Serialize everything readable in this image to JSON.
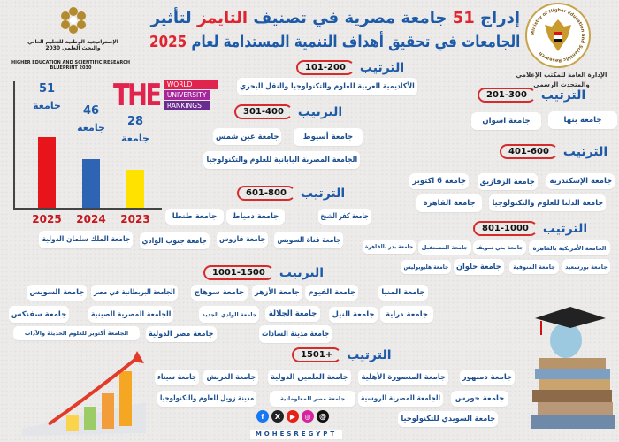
{
  "header": {
    "title_line1_pre": "إدراج",
    "title_count": "51",
    "title_line1_mid": "جامعة مصرية في تصنيف",
    "title_highlight": "التايمز",
    "title_line1_post": "لتأثير",
    "title_line2_pre": "الجامعات في تحقيق أهداف التنمية المستدامة لعام",
    "title_year": "2025",
    "ministry_office_line1": "الإدارة العامة للمكتب الإعلامي",
    "ministry_office_line2": "والمتحدث الرسمي",
    "ministry_seal_text": "Ministry of Higher Education and Scientific Research",
    "strategy_ar_line1": "الإستراتيجية الوطنية للتعليم العالي",
    "strategy_ar_line2": "والبحث العلمي 2030",
    "strategy_en_line1": "HIGHER EDUCATION AND SCIENTIFIC RESEARCH",
    "strategy_en_line2": "BLUEPRINT 2030",
    "the_logo": {
      "big": "THE",
      "l1": "WORLD",
      "l2": "UNIVERSITY",
      "l3": "RANKINGS"
    }
  },
  "rank_label": "الترتيب",
  "unit_label": "جامعة",
  "chart_data": {
    "type": "bar",
    "categories": [
      "2025",
      "2024",
      "2023"
    ],
    "values": [
      51,
      46,
      28
    ],
    "colors": [
      "#e8141c",
      "#2e64b4",
      "#ffe200"
    ],
    "data_labels": [
      "51",
      "46",
      "28"
    ]
  },
  "groups": [
    {
      "rank": "101-200",
      "universities": [
        "الأكاديمية العربية للعلوم والتكنولوجيا والنقل البحري"
      ]
    },
    {
      "rank": "201-300",
      "universities": [
        "جامعة بنها",
        "جامعة اسوان"
      ]
    },
    {
      "rank": "301-400",
      "universities": [
        "جامعة أسيوط",
        "جامعة عين شمس",
        "الجامعة المصرية اليابانية للعلوم والتكنولوجيا"
      ]
    },
    {
      "rank": "401-600",
      "universities": [
        "جامعة الإسكندرية",
        "جامعة الزقازيق",
        "جامعة 6 اكتوبر",
        "جامعة الدلتا للعلوم والتكنولوجيا",
        "جامعة القاهرة"
      ]
    },
    {
      "rank": "601-800",
      "universities": [
        "جامعة كفر الشيخ",
        "جامعة دمياط",
        "جامعة طنطا",
        "جامعة قناة السويس",
        "جامعة فاروس",
        "جامعة جنوب الوادي",
        "جامعة الملك سلمان الدولية"
      ]
    },
    {
      "rank": "801-1000",
      "universities": [
        "الجامعة الأمريكية بالقاهرة",
        "جامعة بني سويف",
        "جامعة المستقبل",
        "جامعة بدر بالقاهرة",
        "جامعة بورسعيد",
        "جامعة المنوفية",
        "جامعة حلوان",
        "جامعة هليوبوليس"
      ]
    },
    {
      "rank": "1001-1500",
      "universities": [
        "جامعة المنيا",
        "جامعة الفيوم",
        "جامعة الأزهر",
        "جامعة سوهاج",
        "الجامعة البريطانية في مصر",
        "جامعة السويس",
        "جامعة دراية",
        "جامعة النيل",
        "جامعة الجلالة",
        "جامعة الوادي الجديد",
        "الجامعة المصرية الصينية",
        "جامعة سفنكس",
        "جامعة مدينة السادات",
        "جامعة مصر الدولية",
        "الجامعة أكتوبر للعلوم الحديثة والآداب"
      ]
    },
    {
      "rank": "+1501",
      "universities": [
        "جامعة دمنهور",
        "جامعة المنصورة الأهلية",
        "جامعة العلمين الدولية",
        "جامعة العريش",
        "جامعة سيناء",
        "جامعة حورس",
        "الجامعة المصرية الروسية",
        "جامعة مصر للمعلوماتية",
        "مدينة زويل للعلوم والتكنولوجيا",
        "جامعة السويدي للتكنولوجيا"
      ]
    }
  ],
  "footer": {
    "social": [
      "threads-icon",
      "instagram-icon",
      "youtube-icon",
      "x-icon",
      "facebook-icon"
    ],
    "handle": "MOHESREGYPT"
  }
}
